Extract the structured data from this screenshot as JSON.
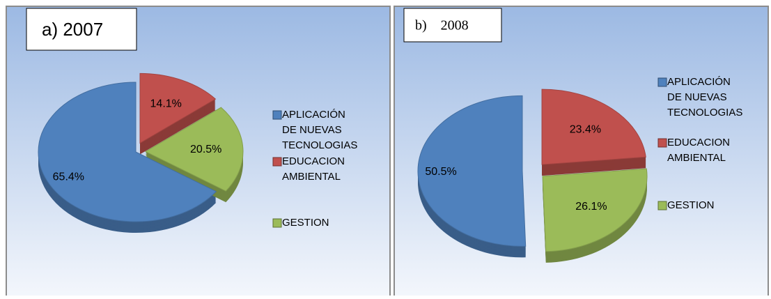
{
  "chart_data": [
    {
      "type": "pie",
      "title": "a)  2007",
      "categories": [
        "APLICACIÓN DE NUEVAS TECNOLOGIAS",
        "EDUCACION AMBIENTAL",
        "GESTION"
      ],
      "values": [
        65.4,
        14.1,
        20.5
      ],
      "value_labels": [
        "65.4%",
        "14.1%",
        "20.5%"
      ],
      "colors": [
        "#4f81bd",
        "#c0504d",
        "#9bbb59"
      ],
      "legend": "right"
    },
    {
      "type": "pie",
      "title": "b)    2008",
      "categories": [
        "APLICACIÓN DE NUEVAS TECNOLOGIAS",
        "EDUCACION AMBIENTAL",
        "GESTION"
      ],
      "values": [
        50.5,
        23.4,
        26.1
      ],
      "value_labels": [
        "50.5%",
        "23.4%",
        "26.1%"
      ],
      "colors": [
        "#4f81bd",
        "#c0504d",
        "#9bbb59"
      ],
      "legend": "right"
    }
  ]
}
